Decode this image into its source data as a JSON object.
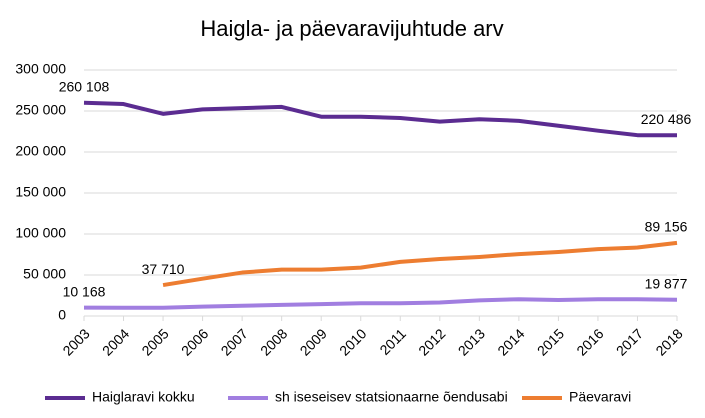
{
  "chart_data": {
    "type": "line",
    "title": "Haigla- ja päevaravijuhtude arv",
    "categories": [
      "2003",
      "2004",
      "2005",
      "2006",
      "2007",
      "2008",
      "2009",
      "2010",
      "2011",
      "2012",
      "2013",
      "2014",
      "2015",
      "2016",
      "2017",
      "2018"
    ],
    "series": [
      {
        "name": "Haiglaravi kokku",
        "color": "#5b2c91",
        "values": [
          260108,
          258500,
          246500,
          252000,
          253500,
          255000,
          243000,
          243000,
          241500,
          237000,
          240000,
          238000,
          232000,
          226000,
          220500,
          220486
        ],
        "value_labels": [
          "260 108",
          null,
          null,
          null,
          null,
          null,
          null,
          null,
          null,
          null,
          null,
          null,
          null,
          null,
          null,
          "220 486"
        ]
      },
      {
        "name": "sh iseseisev statsionaarne õendusabi",
        "color": "#a17ee0",
        "values": [
          10168,
          10000,
          10000,
          11500,
          12500,
          13500,
          14500,
          15500,
          15500,
          16500,
          19000,
          20500,
          19500,
          20500,
          20500,
          19877
        ],
        "value_labels": [
          "10 168",
          null,
          null,
          null,
          null,
          null,
          null,
          null,
          null,
          null,
          null,
          null,
          null,
          null,
          null,
          "19 877"
        ]
      },
      {
        "name": "Päevaravi",
        "color": "#ed7d31",
        "values": [
          null,
          null,
          37710,
          45500,
          53000,
          56500,
          56500,
          59000,
          66000,
          69500,
          72000,
          75500,
          78000,
          81500,
          83500,
          89156
        ],
        "value_labels": [
          null,
          null,
          "37 710",
          null,
          null,
          null,
          null,
          null,
          null,
          null,
          null,
          null,
          null,
          null,
          null,
          "89 156"
        ]
      }
    ],
    "ylim": [
      0,
      300000
    ],
    "yticks": [
      0,
      {
        "value": 50000,
        "label": "50 000"
      },
      {
        "value": 100000,
        "label": "100 000"
      },
      {
        "value": 150000,
        "label": "150 000"
      },
      {
        "value": 200000,
        "label": "200 000"
      },
      {
        "value": 250000,
        "label": "250 000"
      },
      {
        "value": 300000,
        "label": "300 000"
      }
    ],
    "grid": true
  }
}
